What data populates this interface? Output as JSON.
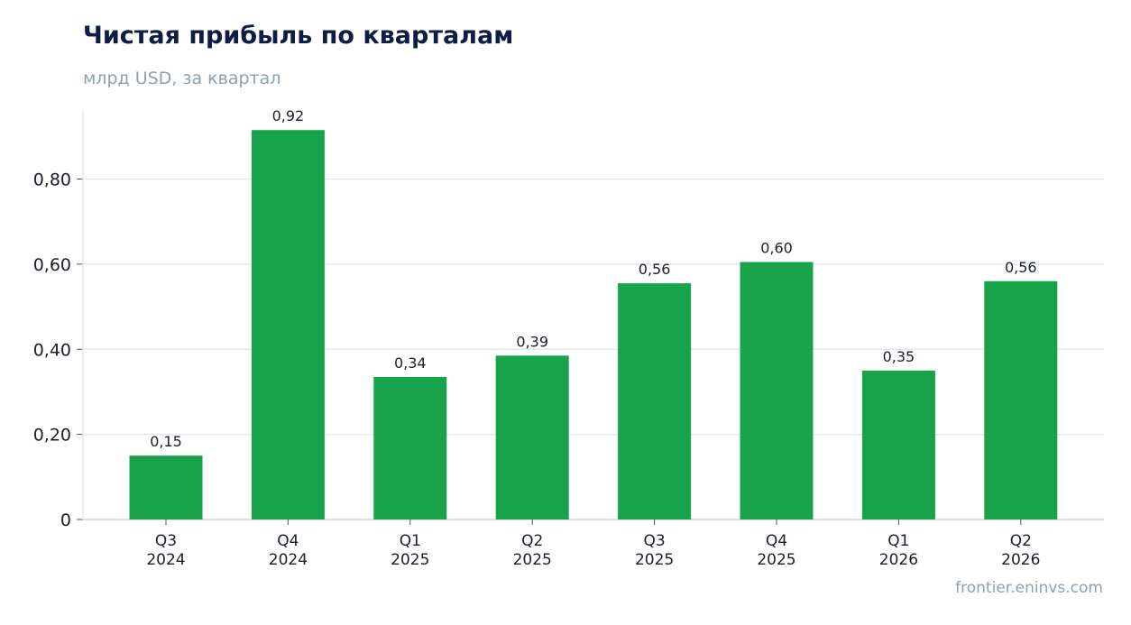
{
  "chart_data": {
    "type": "bar",
    "title": "Чистая прибыль по кварталам",
    "subtitle": "млрд USD, за квартал",
    "categories": [
      [
        "Q3",
        "2024"
      ],
      [
        "Q4",
        "2024"
      ],
      [
        "Q1",
        "2025"
      ],
      [
        "Q2",
        "2025"
      ],
      [
        "Q3",
        "2025"
      ],
      [
        "Q4",
        "2025"
      ],
      [
        "Q1",
        "2026"
      ],
      [
        "Q2",
        "2026"
      ]
    ],
    "values": [
      0.15,
      0.915,
      0.335,
      0.385,
      0.555,
      0.605,
      0.35,
      0.56
    ],
    "data_labels": [
      "0,15",
      "0,92",
      "0,34",
      "0,39",
      "0,56",
      "0,60",
      "0,35",
      "0,56"
    ],
    "ylim": [
      0,
      0.96
    ],
    "yticks": [
      0,
      0.2,
      0.4,
      0.6,
      0.8
    ],
    "ytick_labels": [
      "0",
      "0,20",
      "0,40",
      "0,60",
      "0,80"
    ],
    "grid": true,
    "bar_color": "#18a34a",
    "grid_color": "#e3e7ee"
  },
  "source": "frontier.eninvs.com"
}
